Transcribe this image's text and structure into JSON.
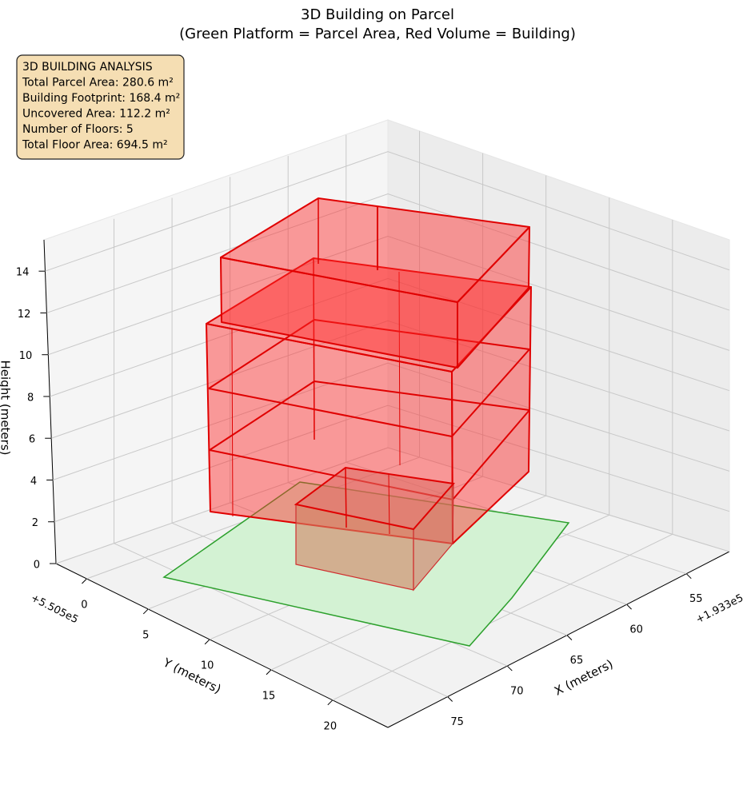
{
  "chart_data": {
    "type": "3d",
    "title": "3D Building on Parcel",
    "subtitle": "(Green Platform = Parcel Area, Red Volume = Building)",
    "annotation": [
      "3D BUILDING ANALYSIS",
      "Total Parcel Area: 280.6 m²",
      "Building Footprint: 168.4 m²",
      "Uncovered Area: 112.2 m²",
      "Number of Floors: 5",
      "Total Floor Area: 694.5 m²"
    ],
    "xlabel": "X (meters)",
    "ylabel": "Y (meters)",
    "zlabel": "Height (meters)",
    "x_offset": "+1.933e5",
    "y_offset": "+5.505e5",
    "xlim": [
      51.4,
      80
    ],
    "xticks": [
      55,
      60,
      65,
      70,
      75
    ],
    "ylim": [
      -2.5,
      24.5
    ],
    "yticks": [
      0,
      5,
      10,
      15,
      20
    ],
    "zlim": [
      0,
      15.5
    ],
    "zticks": [
      0,
      2,
      4,
      6,
      8,
      10,
      12,
      14
    ],
    "grid": true
  }
}
